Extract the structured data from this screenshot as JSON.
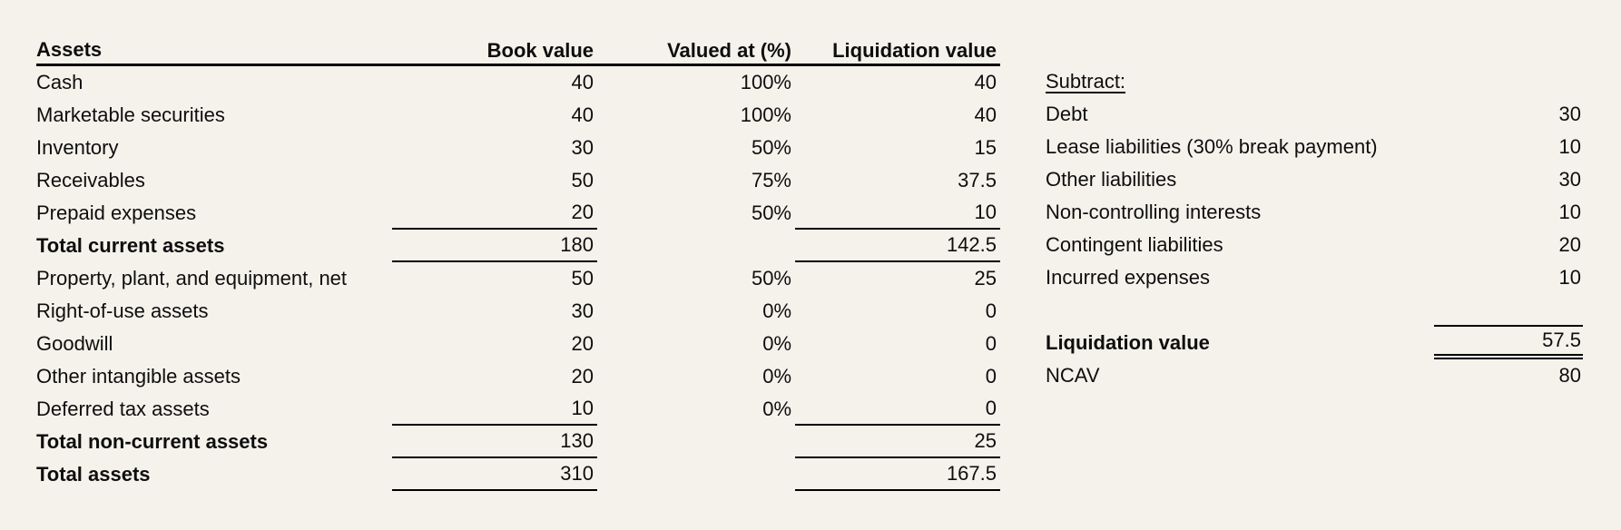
{
  "page": {
    "background_color": "#f5f2eb",
    "text_color": "#0e0e0e",
    "line_color": "#000000"
  },
  "assets_table": {
    "headers": {
      "assets": "Assets",
      "book_value": "Book value",
      "valued_at": "Valued at (%)",
      "liquidation_value": "Liquidation value"
    },
    "rows": [
      {
        "label": "Cash",
        "book": "40",
        "pct": "100%",
        "liq": "40"
      },
      {
        "label": "Marketable securities",
        "book": "40",
        "pct": "100%",
        "liq": "40"
      },
      {
        "label": "Inventory",
        "book": "30",
        "pct": "50%",
        "liq": "15"
      },
      {
        "label": "Receivables",
        "book": "50",
        "pct": "75%",
        "liq": "37.5"
      },
      {
        "label": "Prepaid expenses",
        "book": "20",
        "pct": "50%",
        "liq": "10"
      },
      {
        "label": "Total current assets",
        "book": "180",
        "pct": "",
        "liq": "142.5"
      },
      {
        "label": "Property, plant, and equipment, net",
        "book": "50",
        "pct": "50%",
        "liq": "25"
      },
      {
        "label": "Right-of-use assets",
        "book": "30",
        "pct": "0%",
        "liq": "0"
      },
      {
        "label": "Goodwill",
        "book": "20",
        "pct": "0%",
        "liq": "0"
      },
      {
        "label": "Other intangible assets",
        "book": "20",
        "pct": "0%",
        "liq": "0"
      },
      {
        "label": "Deferred tax assets",
        "book": "10",
        "pct": "0%",
        "liq": "0"
      },
      {
        "label": "Total non-current assets",
        "book": "130",
        "pct": "",
        "liq": "25"
      },
      {
        "label": "Total assets",
        "book": "310",
        "pct": "",
        "liq": "167.5"
      }
    ]
  },
  "subtract_panel": {
    "title": "Subtract:",
    "rows": [
      {
        "label": "Debt",
        "value": "30"
      },
      {
        "label": "Lease liabilities (30% break payment)",
        "value": "10"
      },
      {
        "label": "Other liabilities",
        "value": "30"
      },
      {
        "label": "Non-controlling interests",
        "value": "10"
      },
      {
        "label": "Contingent liabilities",
        "value": "20"
      },
      {
        "label": "Incurred expenses",
        "value": "10"
      }
    ],
    "totals": [
      {
        "label": "Liquidation value",
        "value": "57.5"
      },
      {
        "label": "NCAV",
        "value": "80"
      }
    ]
  }
}
